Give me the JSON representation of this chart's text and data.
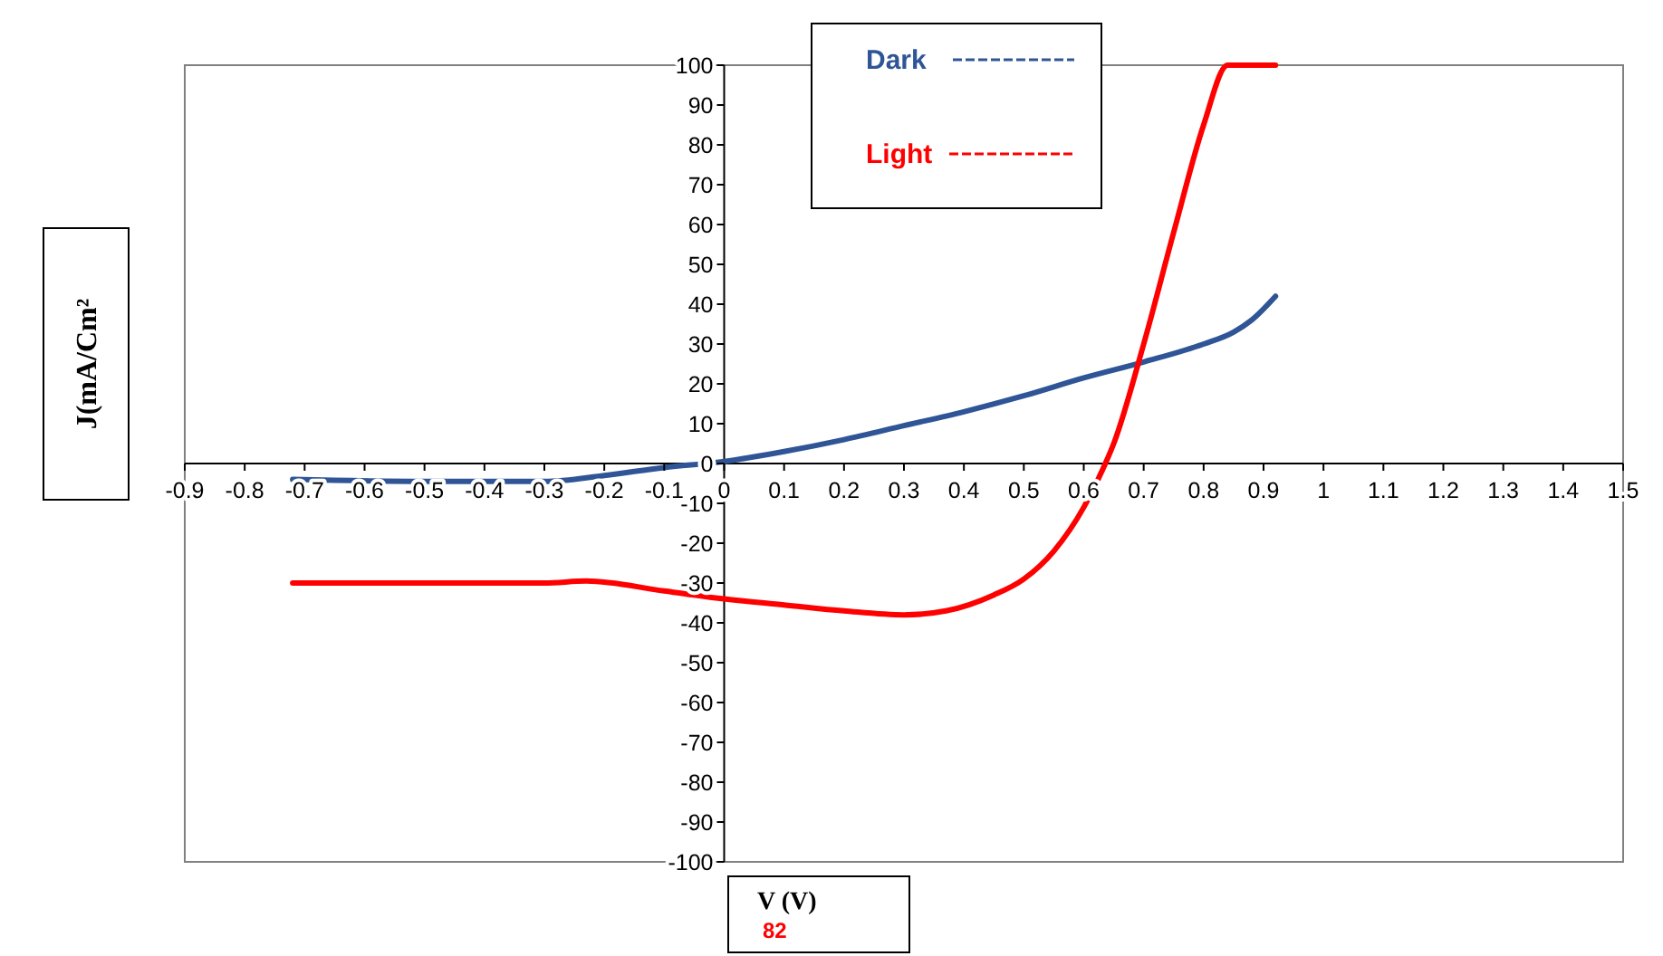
{
  "chart_data": {
    "type": "line",
    "xlabel": "V (V)",
    "ylabel": "J(mA/Cm²",
    "annotations": [
      "82"
    ],
    "xlim": [
      -0.9,
      1.5
    ],
    "xticks": [
      -0.9,
      -0.8,
      -0.7,
      -0.6,
      -0.5,
      -0.4,
      -0.3,
      -0.2,
      -0.1,
      0,
      0.1,
      0.2,
      0.3,
      0.4,
      0.5,
      0.6,
      0.7,
      0.8,
      0.9,
      1,
      1.1,
      1.2,
      1.3,
      1.4,
      1.5
    ],
    "ylim": [
      -100,
      100
    ],
    "yticks": [
      -100,
      -90,
      -80,
      -70,
      -60,
      -50,
      -40,
      -30,
      -20,
      -10,
      0,
      10,
      20,
      30,
      40,
      50,
      60,
      70,
      80,
      90,
      100
    ],
    "legend": "top",
    "grid": false,
    "marker": "none",
    "line_style": "solid",
    "series": [
      {
        "name": "Dark",
        "color": "#2f5597",
        "x": [
          -0.72,
          -0.5,
          -0.3,
          -0.2,
          -0.1,
          0,
          0.1,
          0.2,
          0.3,
          0.4,
          0.5,
          0.6,
          0.7,
          0.8,
          0.85,
          0.88,
          0.92
        ],
        "values": [
          -4,
          -4.5,
          -4.5,
          -3,
          -1,
          0.5,
          3,
          6,
          9.5,
          13,
          17,
          21.5,
          25.5,
          30,
          33,
          36,
          42
        ]
      },
      {
        "name": "Light",
        "color": "#ff0000",
        "x": [
          -0.72,
          -0.3,
          -0.23,
          -0.1,
          0,
          0.1,
          0.2,
          0.3,
          0.37,
          0.45,
          0.5,
          0.55,
          0.6,
          0.63,
          0.65,
          0.7,
          0.75,
          0.8,
          0.84,
          0.92
        ],
        "values": [
          -30,
          -30,
          -29.5,
          -32,
          -34,
          -35.5,
          -37,
          -38,
          -37,
          -33,
          -29,
          -22,
          -11,
          -2,
          5,
          30,
          58,
          85,
          100,
          100
        ]
      }
    ]
  }
}
